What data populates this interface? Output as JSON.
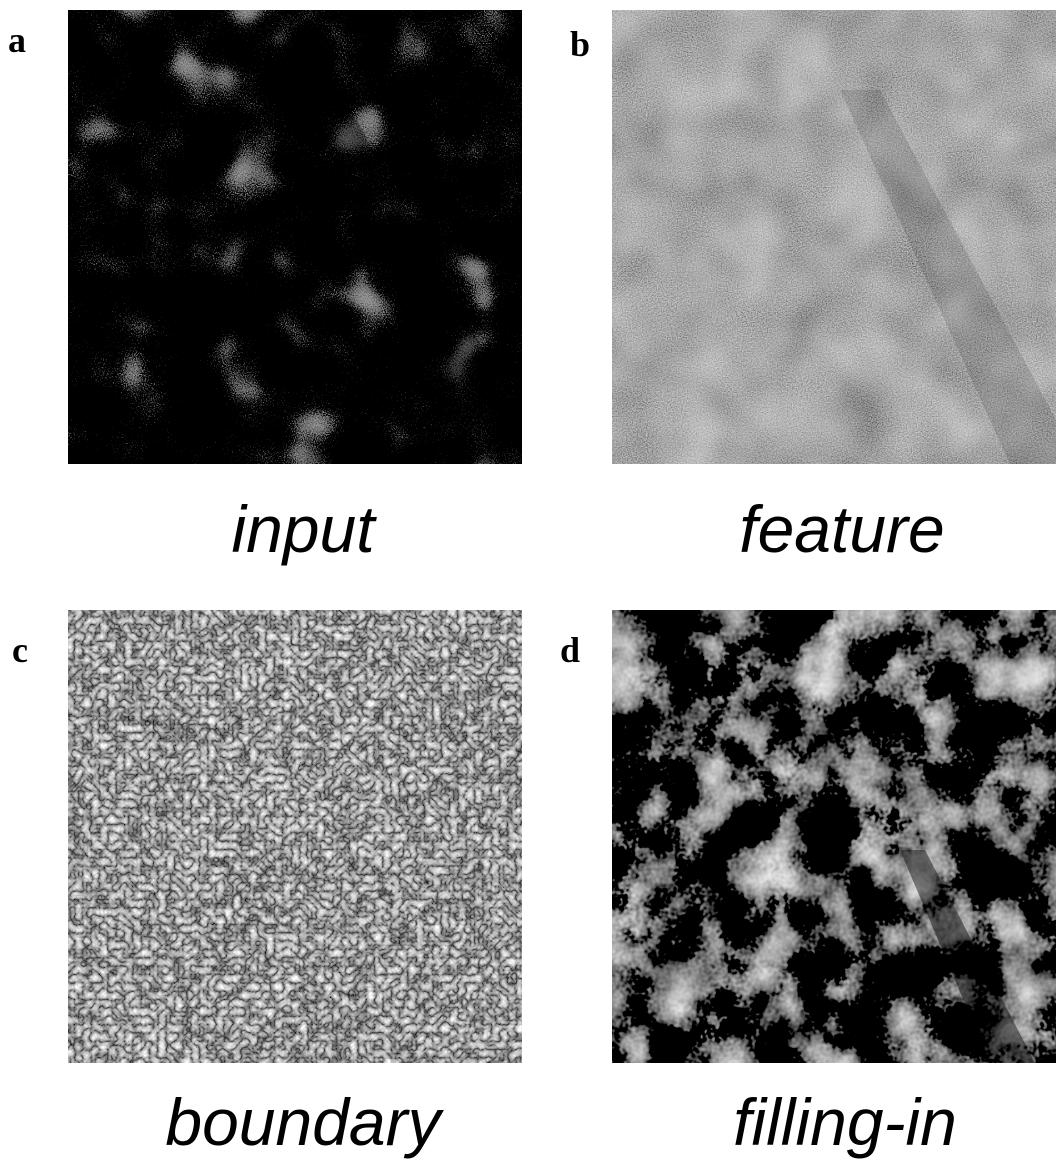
{
  "panels": [
    {
      "letter": "a",
      "caption": "input"
    },
    {
      "letter": "b",
      "caption": "feature"
    },
    {
      "letter": "c",
      "caption": "boundary"
    },
    {
      "letter": "d",
      "caption": "filling-in"
    }
  ]
}
